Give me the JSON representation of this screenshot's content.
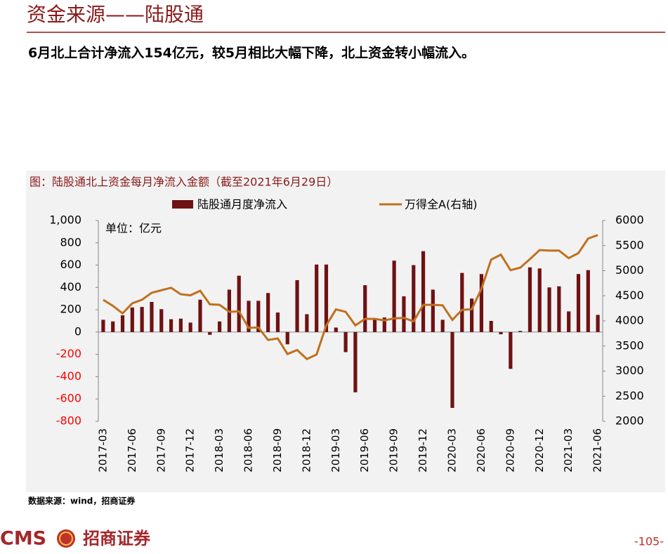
{
  "header": {
    "title": "资金来源——陆股通",
    "subtitle": "6月北上合计净流入154亿元，较5月相比大幅下降，北上资金转小幅流入。"
  },
  "chart_data": {
    "type": "combo",
    "title": "图：陆股通北上资金每月净流入金额（截至2021年6月29日）",
    "annotation": "单位：亿元",
    "categories": [
      "2017-03",
      null,
      null,
      "2017-06",
      null,
      null,
      "2017-09",
      null,
      null,
      "2017-12",
      null,
      null,
      "2018-03",
      null,
      null,
      "2018-06",
      null,
      null,
      "2018-09",
      null,
      null,
      "2018-12",
      null,
      null,
      "2019-03",
      null,
      null,
      "2019-06",
      null,
      null,
      "2019-09",
      null,
      null,
      "2019-12",
      null,
      null,
      "2020-03",
      null,
      null,
      "2020-06",
      null,
      null,
      "2020-09",
      null,
      null,
      "2020-12",
      null,
      null,
      "2021-03",
      null,
      null,
      "2021-06"
    ],
    "series": [
      {
        "name": "陆股通月度净流入",
        "type": "bar",
        "color": "#6e1214",
        "values": [
          110,
          95,
          150,
          220,
          225,
          270,
          205,
          115,
          120,
          85,
          290,
          -25,
          95,
          380,
          505,
          280,
          280,
          350,
          175,
          -110,
          465,
          160,
          605,
          605,
          40,
          -180,
          -540,
          420,
          120,
          130,
          640,
          320,
          600,
          725,
          380,
          110,
          -680,
          530,
          300,
          520,
          100,
          -20,
          -330,
          10,
          580,
          570,
          400,
          410,
          185,
          520,
          555,
          154
        ]
      },
      {
        "name": "万得全A(右轴)",
        "type": "line",
        "axis": "y2",
        "color": "#c0701e",
        "values": [
          4420,
          4300,
          4150,
          4350,
          4420,
          4560,
          4610,
          4660,
          4530,
          4510,
          4600,
          4330,
          4320,
          4180,
          4190,
          3860,
          3870,
          3620,
          3650,
          3340,
          3420,
          3240,
          3330,
          3910,
          4230,
          4180,
          3910,
          4040,
          4040,
          4010,
          4050,
          4060,
          3990,
          4320,
          4320,
          4310,
          4020,
          4220,
          4230,
          4640,
          5220,
          5320,
          5010,
          5060,
          5230,
          5410,
          5400,
          5400,
          5250,
          5350,
          5640,
          5710
        ]
      }
    ],
    "ylim": [
      -800,
      1000
    ],
    "yticks": [
      -800,
      -600,
      -400,
      -200,
      0,
      200,
      400,
      600,
      800,
      {
        "value": 1000,
        "label": "1,000"
      }
    ],
    "y2lim": [
      2000,
      6000
    ],
    "y2ticks": [
      2000,
      2500,
      3000,
      3500,
      4000,
      4500,
      5000,
      5500,
      6000
    ],
    "negative_tick_color": "#ff0000",
    "legend": "top"
  },
  "source": "数据来源：wind，招商证券",
  "footer": {
    "brand": "CMS",
    "company": "招商证券",
    "page": "-105-"
  }
}
